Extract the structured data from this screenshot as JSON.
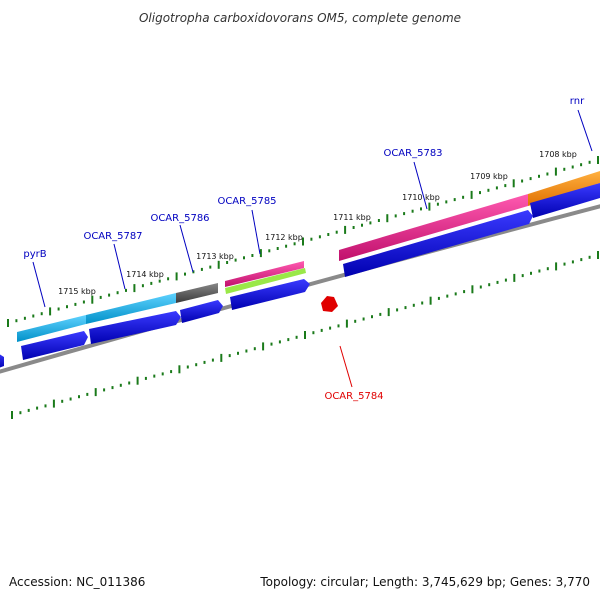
{
  "title": "Oligotropha carboxidovorans OM5, complete genome",
  "footer": {
    "accession": "Accession: NC_011386",
    "topology": "Topology: circular; Length: 3,745,629 bp; Genes: 3,770"
  },
  "tick_labels": [
    "1708 kbp",
    "1709 kbp",
    "1710 kbp",
    "1711 kbp",
    "1712 kbp",
    "1713 kbp",
    "1714 kbp",
    "1715 kbp"
  ],
  "gene_labels": {
    "rnr": "rnr",
    "ocar_5783": "OCAR_5783",
    "ocar_5785": "OCAR_5785",
    "ocar_5786": "OCAR_5786",
    "ocar_5787": "OCAR_5787",
    "pyrb": "pyrB",
    "ocar_5784": "OCAR_5784"
  },
  "colors": {
    "backbone": "#8a8a8a",
    "ticks": "#1a7a1a",
    "cds": "#0000e0",
    "forward_label": "#0000c0",
    "reverse": "#e00000",
    "cyan_feature": "#1ab8e8",
    "gray_feature": "#555555",
    "pink_feature": "#e0208a",
    "green_feature": "#90e040",
    "orange_feature": "#f08a10"
  }
}
